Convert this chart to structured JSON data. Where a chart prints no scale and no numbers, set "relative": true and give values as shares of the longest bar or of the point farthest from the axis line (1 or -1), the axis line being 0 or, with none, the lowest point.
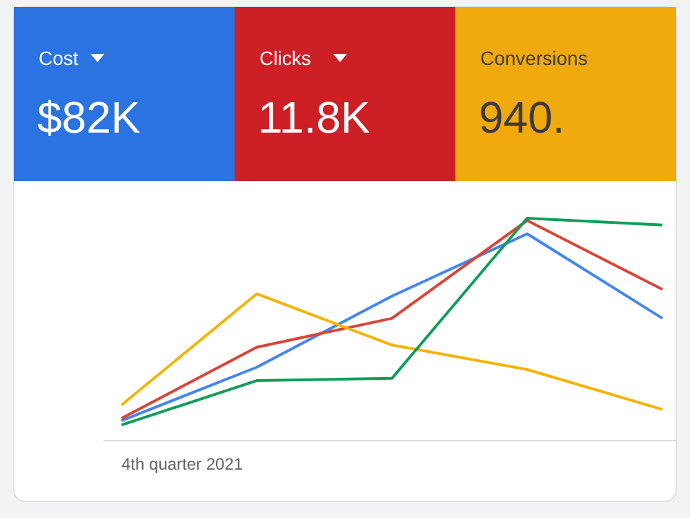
{
  "chart_data": [
    {
      "type": "other",
      "categories": [
        "Cost",
        "Clicks",
        "Conversions"
      ],
      "value_labels": [
        "$82K",
        "11.8K",
        "940."
      ],
      "colors": [
        "#2a73e0",
        "#cc1f26",
        "#f1aa0e"
      ]
    },
    {
      "type": "line",
      "relative": true,
      "xlabel": "4th quarter 2021",
      "categories": [
        null,
        null,
        null,
        null,
        null
      ],
      "marker": "none",
      "line_style": "solid",
      "series": [
        {
          "color": "#4285f4",
          "values": [
            0.09,
            0.33,
            0.65,
            0.93,
            0.55
          ]
        },
        {
          "color": "#db4437",
          "values": [
            0.1,
            0.42,
            0.55,
            0.99,
            0.68
          ]
        },
        {
          "color": "#f4b400",
          "values": [
            0.16,
            0.66,
            0.43,
            0.32,
            0.14
          ]
        },
        {
          "color": "#0f9d58",
          "values": [
            0.07,
            0.27,
            0.28,
            1,
            0.97
          ]
        }
      ]
    }
  ]
}
